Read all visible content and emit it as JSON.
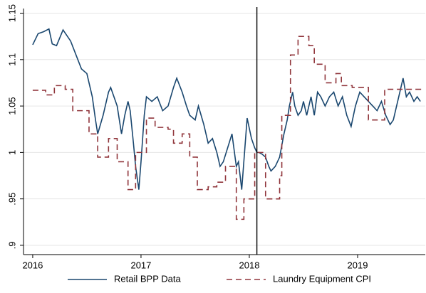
{
  "chart_data": {
    "type": "line",
    "xlim": [
      2015.915,
      2019.625
    ],
    "xticks": [
      2016,
      2017,
      2018,
      2019
    ],
    "ylim": [
      0.89,
      1.155
    ],
    "yticks": [
      {
        "value": 0.9,
        "label": ".9"
      },
      {
        "value": 0.95,
        "label": ".95"
      },
      1,
      1.05,
      1.1,
      1.15
    ],
    "grid": true,
    "legend": "bottom",
    "vline": 2018.07,
    "vline_color": "#000000",
    "series": [
      {
        "name": "Retail BPP Data",
        "color": "#1a476f",
        "linestyle": "solid",
        "drawstyle": "default",
        "x": [
          2016.0,
          2016.05,
          2016.1,
          2016.15,
          2016.18,
          2016.22,
          2016.28,
          2016.35,
          2016.4,
          2016.45,
          2016.5,
          2016.55,
          2016.58,
          2016.6,
          2016.65,
          2016.7,
          2016.72,
          2016.78,
          2016.82,
          2016.85,
          2016.88,
          2016.9,
          2016.93,
          2016.95,
          2016.98,
          2017.0,
          2017.03,
          2017.05,
          2017.1,
          2017.15,
          2017.2,
          2017.25,
          2017.3,
          2017.33,
          2017.38,
          2017.42,
          2017.45,
          2017.5,
          2017.53,
          2017.58,
          2017.62,
          2017.66,
          2017.7,
          2017.73,
          2017.76,
          2017.8,
          2017.84,
          2017.88,
          2017.9,
          2017.93,
          2017.98,
          2018.02,
          2018.05,
          2018.07,
          2018.09,
          2018.12,
          2018.15,
          2018.18,
          2018.2,
          2018.24,
          2018.28,
          2018.32,
          2018.35,
          2018.37,
          2018.4,
          2018.42,
          2018.45,
          2018.48,
          2018.5,
          2018.53,
          2018.57,
          2018.6,
          2018.63,
          2018.66,
          2018.7,
          2018.74,
          2018.78,
          2018.82,
          2018.86,
          2018.9,
          2018.94,
          2018.98,
          2019.02,
          2019.06,
          2019.1,
          2019.14,
          2019.18,
          2019.22,
          2019.26,
          2019.3,
          2019.33,
          2019.36,
          2019.39,
          2019.42,
          2019.45,
          2019.48,
          2019.52,
          2019.55,
          2019.58
        ],
        "values": [
          1.116,
          1.128,
          1.13,
          1.133,
          1.117,
          1.115,
          1.132,
          1.12,
          1.105,
          1.09,
          1.085,
          1.06,
          1.035,
          1.02,
          1.04,
          1.065,
          1.07,
          1.05,
          1.02,
          1.04,
          1.055,
          1.045,
          1.01,
          0.985,
          0.96,
          0.99,
          1.04,
          1.06,
          1.055,
          1.06,
          1.045,
          1.05,
          1.07,
          1.08,
          1.065,
          1.05,
          1.04,
          1.035,
          1.05,
          1.03,
          1.01,
          1.015,
          1.0,
          0.985,
          0.99,
          1.005,
          1.02,
          0.985,
          0.99,
          0.96,
          1.037,
          1.015,
          1.005,
          1.0,
          1.0,
          0.998,
          0.995,
          0.985,
          0.98,
          0.985,
          0.995,
          1.02,
          1.035,
          1.05,
          1.065,
          1.05,
          1.04,
          1.045,
          1.055,
          1.04,
          1.06,
          1.04,
          1.065,
          1.06,
          1.05,
          1.06,
          1.065,
          1.05,
          1.06,
          1.04,
          1.028,
          1.05,
          1.065,
          1.06,
          1.055,
          1.05,
          1.045,
          1.055,
          1.04,
          1.03,
          1.035,
          1.05,
          1.065,
          1.08,
          1.06,
          1.065,
          1.055,
          1.06,
          1.055
        ]
      },
      {
        "name": "Laundry Equipment CPI",
        "color": "#90353b",
        "linestyle": "dashed",
        "drawstyle": "steps-post",
        "x": [
          2016.0,
          2016.12,
          2016.2,
          2016.3,
          2016.37,
          2016.52,
          2016.6,
          2016.7,
          2016.78,
          2016.88,
          2016.95,
          2017.05,
          2017.13,
          2017.25,
          2017.3,
          2017.38,
          2017.45,
          2017.52,
          2017.62,
          2017.7,
          2017.78,
          2017.88,
          2017.95,
          2018.05,
          2018.15,
          2018.28,
          2018.3,
          2018.38,
          2018.45,
          2018.55,
          2018.6,
          2018.7,
          2018.8,
          2018.85,
          2018.95,
          2019.1,
          2019.2,
          2019.25,
          2019.6
        ],
        "values": [
          1.067,
          1.062,
          1.072,
          1.068,
          1.045,
          1.02,
          0.995,
          1.015,
          0.99,
          0.96,
          1.0,
          1.037,
          1.027,
          1.025,
          1.01,
          1.02,
          0.995,
          0.96,
          0.963,
          0.968,
          0.985,
          0.928,
          0.95,
          1.0,
          0.95,
          0.975,
          1.04,
          1.105,
          1.125,
          1.115,
          1.095,
          1.075,
          1.085,
          1.072,
          1.07,
          1.035,
          1.035,
          1.068,
          1.068
        ]
      }
    ]
  }
}
